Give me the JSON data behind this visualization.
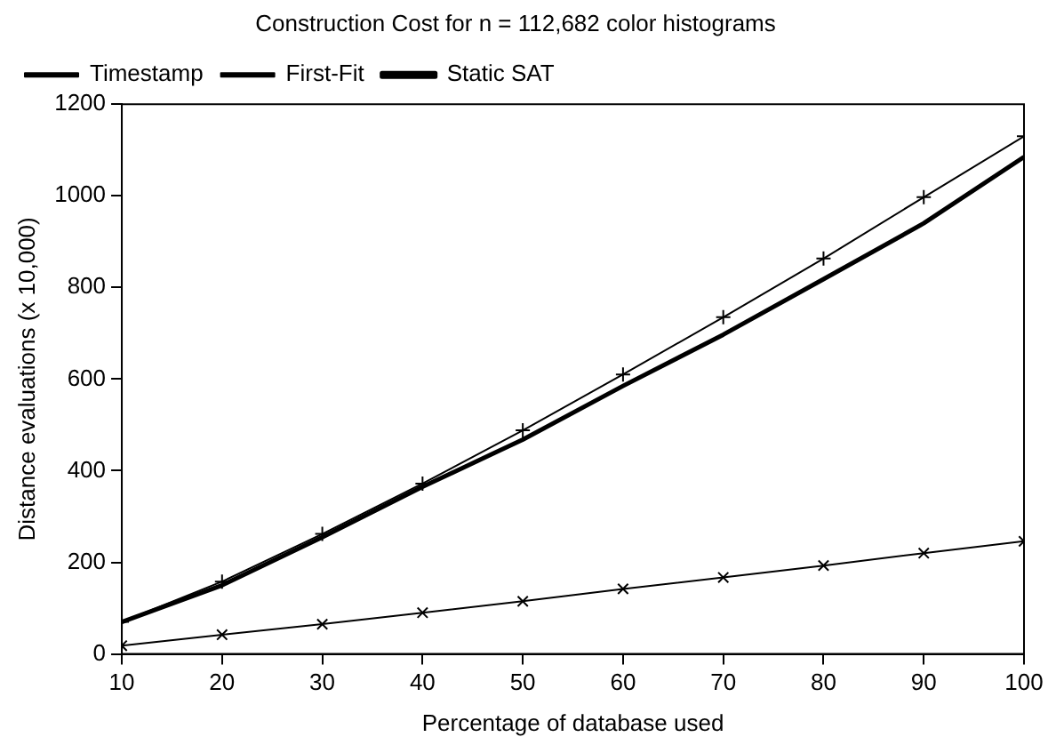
{
  "chart_data": {
    "type": "line",
    "title": "Construction Cost for n = 112,682 color histograms",
    "xlabel": "Percentage of database used",
    "ylabel": "Distance evaluations (x 10,000)",
    "x": [
      10,
      20,
      30,
      40,
      50,
      60,
      70,
      80,
      90,
      100
    ],
    "series": [
      {
        "name": "Timestamp",
        "color": "#000000",
        "marker": "cross",
        "values": [
          70,
          158,
          262,
          372,
          488,
          610,
          735,
          863,
          997,
          1130
        ]
      },
      {
        "name": "First-Fit",
        "color": "#000000",
        "marker": "crossRot",
        "values": [
          18,
          42,
          65,
          90,
          115,
          142,
          167,
          193,
          220,
          246
        ]
      },
      {
        "name": "Static SAT",
        "color": "#000000",
        "marker": "none",
        "values": [
          70,
          150,
          255,
          365,
          468,
          585,
          697,
          818,
          940,
          1085
        ]
      }
    ],
    "xlim": [
      10,
      100
    ],
    "xticks": [
      10,
      20,
      30,
      40,
      50,
      60,
      70,
      80,
      90,
      100
    ],
    "ylim": [
      0,
      1200
    ],
    "yticks": [
      0,
      200,
      400,
      600,
      800,
      1000,
      1200
    ],
    "grid": false,
    "legend": "top left"
  }
}
